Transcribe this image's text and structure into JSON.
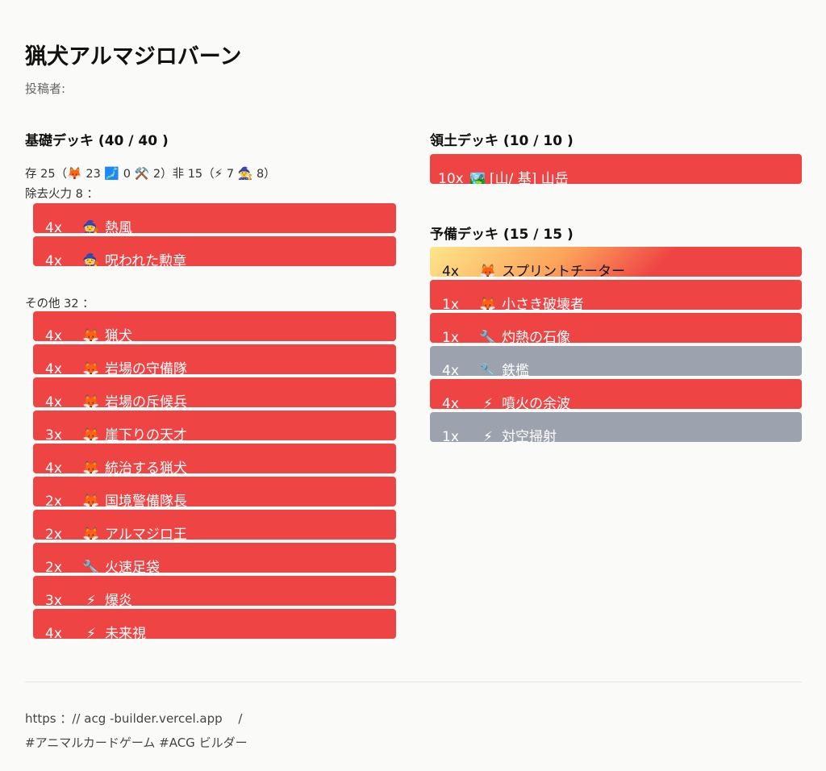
{
  "deck_title": "猟犬アルマジロバーン",
  "poster_label": "投稿者:",
  "base_deck": {
    "title": "基礎デッキ (40 / 40 )",
    "stats": {
      "creatures_label": "存 25（",
      "fox_icon": "🦊",
      "fox_count": "23",
      "land_icon": "🗾",
      "land_count": "0",
      "tool_icon": "⚒️",
      "tool_count": "2）非 15（",
      "bolt_icon": "⚡",
      "bolt_count": "7",
      "witch_icon": "🧙",
      "witch_count": "8）"
    },
    "groups": [
      {
        "label": "除去火力 8 ：",
        "cards": [
          {
            "count": "4x",
            "icon": "🧙",
            "name": "熱風",
            "style": "red"
          },
          {
            "count": "4x",
            "icon": "🧙",
            "name": "呪われた勲章",
            "style": "red"
          }
        ]
      },
      {
        "label": "その他 32 ：",
        "cards": [
          {
            "count": "4x",
            "icon": "🦊",
            "name": "猟犬",
            "style": "red"
          },
          {
            "count": "4x",
            "icon": "🦊",
            "name": "岩場の守備隊",
            "style": "red"
          },
          {
            "count": "4x",
            "icon": "🦊",
            "name": "岩場の斥候兵",
            "style": "red"
          },
          {
            "count": "3x",
            "icon": "🦊",
            "name": "崖下りの天才",
            "style": "red"
          },
          {
            "count": "4x",
            "icon": "🦊",
            "name": "統治する猟犬",
            "style": "red"
          },
          {
            "count": "2x",
            "icon": "🦊",
            "name": "国境警備隊長",
            "style": "red"
          },
          {
            "count": "2x",
            "icon": "🦊",
            "name": "アルマジロ王",
            "style": "red"
          },
          {
            "count": "2x",
            "icon": "🔧",
            "name": "火速足袋",
            "style": "red"
          },
          {
            "count": "3x",
            "icon": "⚡",
            "name": "爆炎",
            "style": "red"
          },
          {
            "count": "4x",
            "icon": "⚡",
            "name": "未来視",
            "style": "red"
          }
        ]
      }
    ]
  },
  "territory_deck": {
    "title": "領土デッキ (10 / 10 )",
    "cards": [
      {
        "count": "10x",
        "icon": "🏞️",
        "name": "[山/ 基] 山岳",
        "style": "red"
      }
    ]
  },
  "reserve_deck": {
    "title": "予備デッキ (15 / 15 )",
    "cards": [
      {
        "count": "4x",
        "icon": "🦊",
        "name": "スプリントチーター",
        "style": "gold"
      },
      {
        "count": "1x",
        "icon": "🦊",
        "name": "小さき破壊者",
        "style": "red"
      },
      {
        "count": "1x",
        "icon": "🔧",
        "name": "灼熱の石像",
        "style": "red"
      },
      {
        "count": "4x",
        "icon": "🔧",
        "name": "鉄檻",
        "style": "gray"
      },
      {
        "count": "4x",
        "icon": "⚡",
        "name": "噴火の余波",
        "style": "red"
      },
      {
        "count": "1x",
        "icon": "⚡",
        "name": "対空掃射",
        "style": "gray"
      }
    ]
  },
  "footer": {
    "url": "https ：// acg -builder.vercel.app　 /",
    "tags": "#アニマルカードゲーム #ACG ビルダー"
  }
}
